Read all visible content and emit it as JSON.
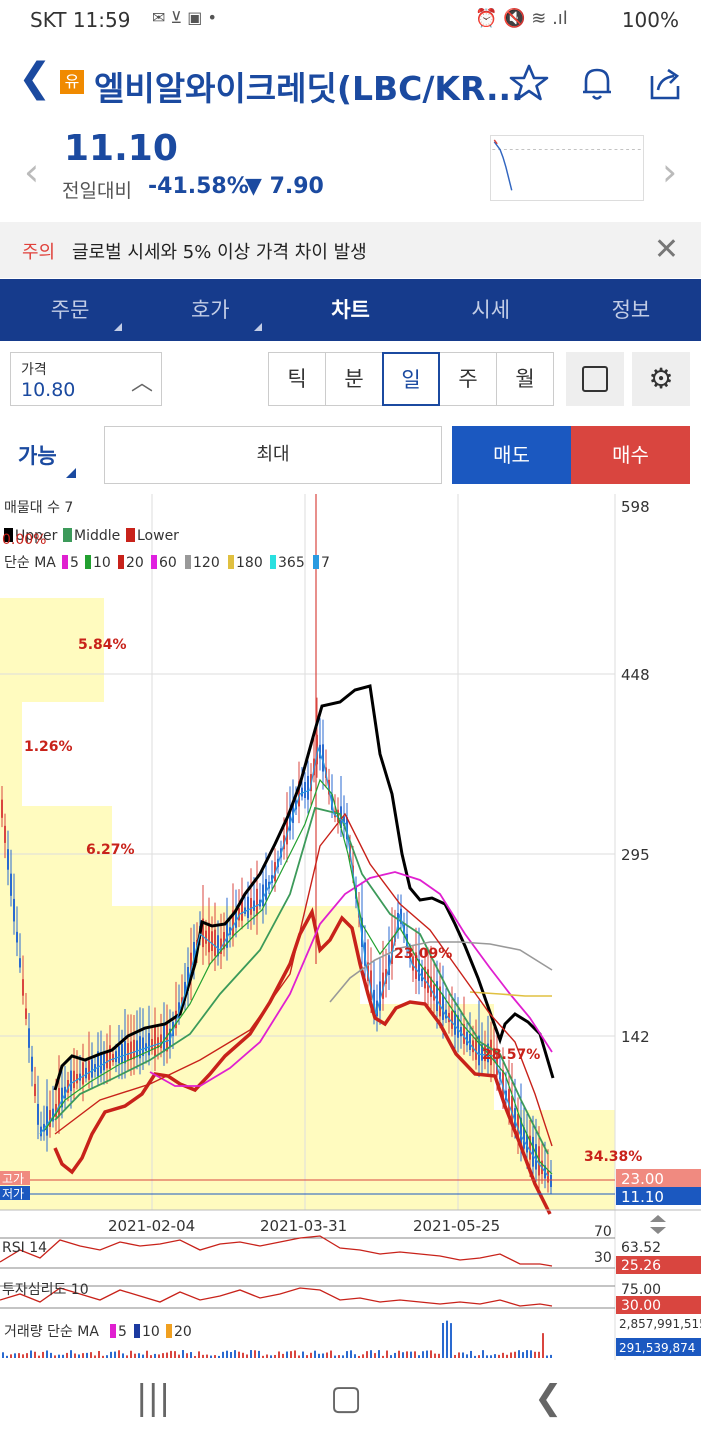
{
  "status": {
    "time_carrier": "SKT 11:59",
    "battery": "100%"
  },
  "header": {
    "badge": "유",
    "title": "엘비알와이크레딧(LBC/KR..."
  },
  "quote": {
    "price": "11.10",
    "compare_label": "전일대비",
    "change_pct": "-41.58%",
    "change_abs": "▼ 7.90"
  },
  "notice": {
    "tag": "주의",
    "message": "글로벌 시세와 5% 이상 가격 차이 발생"
  },
  "tabs": [
    {
      "label": "주문",
      "dropdown": true
    },
    {
      "label": "호가",
      "dropdown": true
    },
    {
      "label": "차트",
      "active": true
    },
    {
      "label": "시세"
    },
    {
      "label": "정보"
    }
  ],
  "controls": {
    "price_label": "가격",
    "price_value": "10.80",
    "periods": [
      "틱",
      "분",
      "일",
      "주",
      "월"
    ],
    "active_period": "일",
    "avail_label": "가능",
    "max_label": "최대",
    "sell_label": "매도",
    "buy_label": "매수"
  },
  "colors": {
    "brand": "#163b8c",
    "down": "#1b4aa0",
    "up": "#d9453f",
    "volume_profile": "#fffbbf"
  },
  "chart_data": {
    "type": "candlestick",
    "legend_volume_profile": "매물대 수 7",
    "legend_bollinger": [
      "Upper",
      "Middle",
      "Lower"
    ],
    "legend_ma_title": "단순 MA",
    "legend_ma": [
      "5",
      "10",
      "20",
      "60",
      "120",
      "180",
      "365",
      "7"
    ],
    "y_ticks": [
      "598",
      "448",
      "295",
      "142"
    ],
    "x_ticks": [
      "2021-02-04",
      "2021-03-31",
      "2021-05-25"
    ],
    "high_label": "고가",
    "high_value": "23.00",
    "low_label": "저가",
    "current_value": "11.10",
    "top_left_pct": "0.00%",
    "volume_profile_pct": [
      "5.84%",
      "1.26%",
      "6.27%",
      "23.09%",
      "28.57%",
      "34.38%"
    ],
    "rsi": {
      "label": "RSI 14",
      "upper": "70",
      "lower": "30",
      "value_a": "63.52",
      "value_b": "25.26"
    },
    "psych": {
      "label": "투자심리도 10",
      "value_a": "75.00",
      "value_b": "30.00"
    },
    "volume": {
      "label": "거래량 단순 MA",
      "ma": [
        "5",
        "10",
        "20"
      ],
      "value_a": "2,857,991,515",
      "value_b": "291,539,874"
    }
  }
}
